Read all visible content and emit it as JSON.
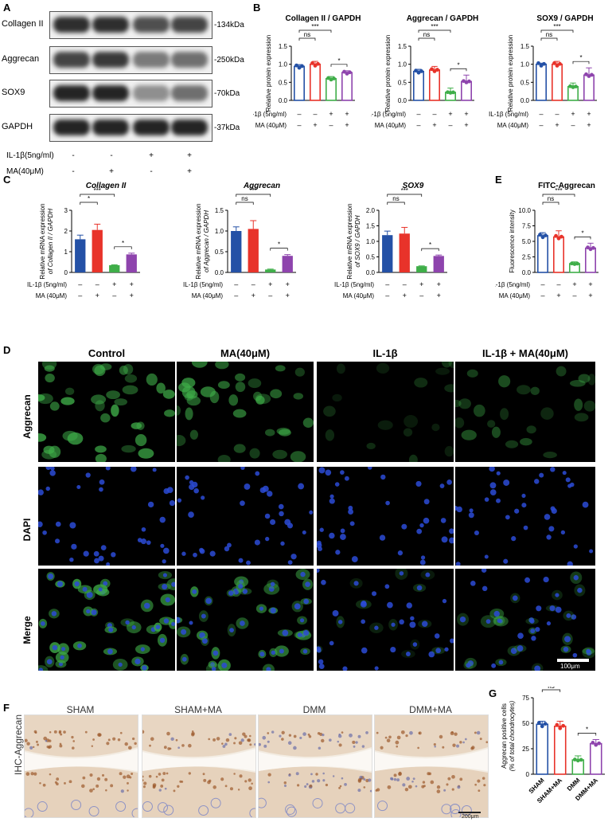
{
  "panel_letters": {
    "a": "A",
    "b": "B",
    "c": "C",
    "d": "D",
    "e": "E",
    "f": "F",
    "g": "G"
  },
  "blots": {
    "rows": [
      {
        "name": "Collagen II",
        "kda": "-134kDa",
        "intensity": [
          0.9,
          0.9,
          0.75,
          0.8
        ]
      },
      {
        "name": "Aggrecan",
        "kda": "-250kDa",
        "intensity": [
          0.8,
          0.85,
          0.55,
          0.6
        ]
      },
      {
        "name": "SOX9",
        "kda": "-70kDa",
        "intensity": [
          0.95,
          0.95,
          0.45,
          0.6
        ]
      },
      {
        "name": "GAPDH",
        "kda": "-37kDa",
        "intensity": [
          0.95,
          0.95,
          0.95,
          0.95
        ]
      }
    ],
    "il1b_label": "IL-1β(5ng/ml)",
    "ma_label": "MA(40μM)",
    "il1b": [
      "-",
      "-",
      "+",
      "+"
    ],
    "ma": [
      "-",
      "+",
      "-",
      "+"
    ]
  },
  "cond_labels": {
    "il1b": "IL-1β (5ng/ml)",
    "ma": "MA (40μM)"
  },
  "cond_signs": {
    "il1b": [
      "–",
      "–",
      "+",
      "+"
    ],
    "ma": [
      "–",
      "+",
      "–",
      "+"
    ]
  },
  "microscopy": {
    "columns": [
      "Control",
      "MA(40μM)",
      "IL-1β",
      "IL-1β + MA(40μM)"
    ],
    "rows": [
      "Aggrecan",
      "DAPI",
      "Merge"
    ],
    "scalebar": "100μm"
  },
  "ihc": {
    "ylabel": "IHC-Aggrecan",
    "columns": [
      "SHAM",
      "SHAM+MA",
      "DMM",
      "DMM+MA"
    ],
    "scalebar": "200μm"
  },
  "colors": {
    "blue": "#2451a6",
    "red": "#e8332a",
    "green": "#3fae49",
    "purple": "#8e44ad"
  },
  "chart_data": [
    {
      "type": "bar",
      "title": "Collagen II / GAPDH",
      "ylabel": "Relative protein expression",
      "ylim": [
        0,
        1.5
      ],
      "yticks": [
        "0.0",
        "0.5",
        "1.0",
        "1.5"
      ],
      "values": [
        0.94,
        1.0,
        0.6,
        0.77
      ],
      "errors": [
        0.05,
        0.08,
        0.06,
        0.05
      ],
      "filled": false,
      "brackets": [
        {
          "a": 0,
          "b": 1,
          "text": "ns",
          "level": 0
        },
        {
          "a": 0,
          "b": 2,
          "text": "***",
          "level": 1
        },
        {
          "a": 2,
          "b": 3,
          "text": "*",
          "level": -1
        }
      ]
    },
    {
      "type": "bar",
      "title": "Aggrecan / GAPDH",
      "ylabel": "Relative protein expression",
      "ylim": [
        0,
        1.5
      ],
      "yticks": [
        "0.0",
        "0.5",
        "1.0",
        "1.5"
      ],
      "values": [
        0.8,
        0.84,
        0.22,
        0.52
      ],
      "errors": [
        0.06,
        0.1,
        0.12,
        0.18
      ],
      "filled": false,
      "brackets": [
        {
          "a": 0,
          "b": 1,
          "text": "ns",
          "level": 0
        },
        {
          "a": 0,
          "b": 2,
          "text": "***",
          "level": 1
        },
        {
          "a": 2,
          "b": 3,
          "text": "*",
          "level": -1
        }
      ]
    },
    {
      "type": "bar",
      "title": "SOX9 / GAPDH",
      "ylabel": "Relative protein expression",
      "ylim": [
        0,
        1.5
      ],
      "yticks": [
        "0.0",
        "0.5",
        "1.0",
        "1.5"
      ],
      "values": [
        1.0,
        1.0,
        0.38,
        0.7
      ],
      "errors": [
        0.03,
        0.08,
        0.1,
        0.2
      ],
      "filled": false,
      "brackets": [
        {
          "a": 0,
          "b": 1,
          "text": "ns",
          "level": 0
        },
        {
          "a": 0,
          "b": 2,
          "text": "***",
          "level": 1
        },
        {
          "a": 2,
          "b": 3,
          "text": "*",
          "level": -1
        }
      ]
    },
    {
      "type": "bar",
      "title": "Collagen II",
      "title_italic": true,
      "ylabel": "Relative mRNA expression",
      "ylabel2": "of Collagen II / GAPDH",
      "ylim": [
        0,
        3
      ],
      "yticks": [
        "0",
        "1",
        "2",
        "3"
      ],
      "values": [
        1.6,
        2.05,
        0.35,
        0.87
      ],
      "errors": [
        0.2,
        0.28,
        0.02,
        0.06
      ],
      "filled": true,
      "brackets": [
        {
          "a": 0,
          "b": 1,
          "text": "*",
          "level": 0
        },
        {
          "a": 0,
          "b": 2,
          "text": "***",
          "level": 1
        },
        {
          "a": 2,
          "b": 3,
          "text": "*",
          "level": -1
        }
      ]
    },
    {
      "type": "bar",
      "title": "Aggrecan",
      "title_italic": true,
      "ylabel": "Relative mRNA expression",
      "ylabel2": "of Aggrecan / GAPDH",
      "ylim": [
        0,
        1.5
      ],
      "yticks": [
        "0.0",
        "0.5",
        "1.0",
        "1.5"
      ],
      "values": [
        1.0,
        1.05,
        0.07,
        0.4
      ],
      "errors": [
        0.1,
        0.2,
        0.01,
        0.03
      ],
      "filled": true,
      "brackets": [
        {
          "a": 0,
          "b": 1,
          "text": "ns",
          "level": 0
        },
        {
          "a": 0,
          "b": 2,
          "text": "***",
          "level": 1
        },
        {
          "a": 2,
          "b": 3,
          "text": "*",
          "level": -1
        }
      ]
    },
    {
      "type": "bar",
      "title": "SOX9",
      "title_italic": true,
      "ylabel": "Relative mRNA expression",
      "ylabel2": "of SOX9 / GAPDH",
      "ylim": [
        0,
        2.0
      ],
      "yticks": [
        "0.0",
        "0.5",
        "1.0",
        "1.5",
        "2.0"
      ],
      "values": [
        1.2,
        1.25,
        0.2,
        0.53
      ],
      "errors": [
        0.13,
        0.2,
        0.01,
        0.03
      ],
      "filled": true,
      "brackets": [
        {
          "a": 0,
          "b": 1,
          "text": "ns",
          "level": 0
        },
        {
          "a": 0,
          "b": 2,
          "text": "***",
          "level": 1
        },
        {
          "a": 2,
          "b": 3,
          "text": "*",
          "level": -1
        }
      ]
    },
    {
      "type": "bar",
      "title": "FITC-Aggrecan",
      "ylabel": "Fluorescence intensity",
      "ylim": [
        0,
        10
      ],
      "yticks": [
        "0.0",
        "2.5",
        "5.0",
        "7.5",
        "10.0"
      ],
      "values": [
        5.9,
        5.7,
        1.4,
        3.9
      ],
      "errors": [
        0.5,
        1.0,
        0.3,
        0.8
      ],
      "filled": false,
      "brackets": [
        {
          "a": 0,
          "b": 1,
          "text": "ns",
          "level": 0
        },
        {
          "a": 0,
          "b": 2,
          "text": "***",
          "level": 1
        },
        {
          "a": 2,
          "b": 3,
          "text": "*",
          "level": -1
        }
      ]
    },
    {
      "type": "bar",
      "title": "",
      "ylabel": "Aggrecan positive cells",
      "ylabel2": "(% of total chondrocytes)",
      "ylim": [
        0,
        75
      ],
      "yticks": [
        "0",
        "25",
        "50",
        "75"
      ],
      "categories": [
        "SHAM",
        "SHAM+MA",
        "DMM",
        "DMM+MA"
      ],
      "values": [
        49,
        47,
        14,
        30
      ],
      "errors": [
        3,
        5,
        4,
        4
      ],
      "filled": false,
      "brackets": [
        {
          "a": 0,
          "b": 1,
          "text": "ns",
          "level": 0
        },
        {
          "a": 0,
          "b": 2,
          "text": "***",
          "level": 1
        },
        {
          "a": 2,
          "b": 3,
          "text": "*",
          "level": -1
        }
      ]
    }
  ]
}
